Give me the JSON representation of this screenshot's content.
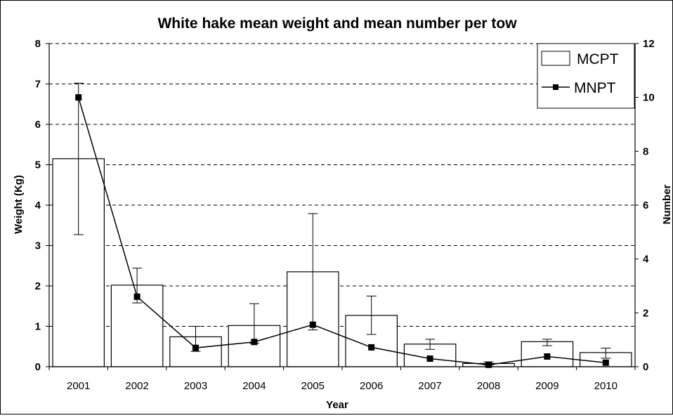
{
  "chart_data": {
    "type": "bar",
    "title": "White hake mean weight and mean number per tow",
    "xlabel": "Year",
    "ylabel": "Weight (Kg)",
    "y2label": "Number",
    "categories": [
      "2001",
      "2002",
      "2003",
      "2004",
      "2005",
      "2006",
      "2007",
      "2008",
      "2009",
      "2010"
    ],
    "ylim": [
      0,
      8
    ],
    "y2lim": [
      0,
      12
    ],
    "yticks": [
      0,
      1,
      2,
      3,
      4,
      5,
      6,
      7,
      8
    ],
    "y2ticks": [
      0,
      2,
      4,
      6,
      8,
      10,
      12
    ],
    "grid": "horizontal dashed",
    "legend_position": "top-right",
    "series": [
      {
        "name": "MCPT",
        "type": "bar",
        "axis": "left",
        "values": [
          5.15,
          2.02,
          0.74,
          1.02,
          2.35,
          1.27,
          0.56,
          0.08,
          0.62,
          0.35
        ],
        "error_low": [
          3.27,
          1.58,
          0.38,
          0.58,
          0.91,
          0.8,
          0.43,
          0.04,
          0.52,
          0.21
        ],
        "error_high": [
          7.02,
          2.44,
          1.0,
          1.56,
          3.79,
          1.75,
          0.68,
          0.12,
          0.68,
          0.46
        ]
      },
      {
        "name": "MNPT",
        "type": "line",
        "axis": "right",
        "values": [
          10.0,
          2.6,
          0.7,
          0.92,
          1.56,
          0.72,
          0.3,
          0.07,
          0.38,
          0.15
        ]
      }
    ]
  },
  "colors": {
    "bar_fill": "#ffffff",
    "stroke": "#000000",
    "grid": "#000000"
  }
}
